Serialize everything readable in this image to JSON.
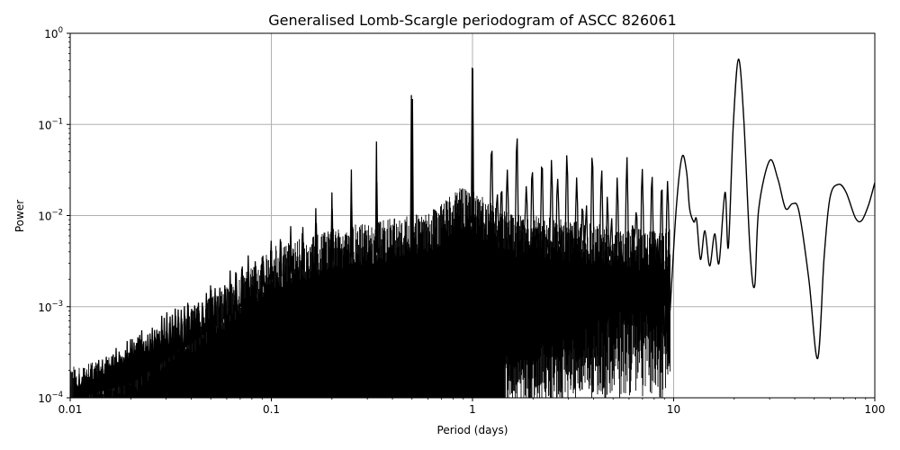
{
  "chart_data": {
    "type": "line",
    "title": "Generalised Lomb-Scargle periodogram of ASCC 826061",
    "xlabel": "Period (days)",
    "ylabel": "Power",
    "xscale": "log",
    "yscale": "log",
    "xlim": [
      0.01,
      100
    ],
    "ylim": [
      0.0001,
      1
    ],
    "grid": true,
    "legend": null,
    "line_color": "#000000",
    "grid_color": "#b0b0b0",
    "x_ticks": [
      {
        "value": 0.01,
        "label": "0.01"
      },
      {
        "value": 0.1,
        "label": "0.1"
      },
      {
        "value": 1,
        "label": "1"
      },
      {
        "value": 10,
        "label": "10"
      },
      {
        "value": 100,
        "label": "100"
      }
    ],
    "y_ticks": [
      {
        "value": 0.0001,
        "base": "10",
        "exp": "−4"
      },
      {
        "value": 0.001,
        "base": "10",
        "exp": "−3"
      },
      {
        "value": 0.01,
        "base": "10",
        "exp": "−2"
      },
      {
        "value": 0.1,
        "base": "10",
        "exp": "−1"
      },
      {
        "value": 1,
        "base": "10",
        "exp": "0"
      }
    ],
    "dominant_peaks": [
      {
        "period": 21.0,
        "power": 0.52
      },
      {
        "period": 0.997,
        "power": 0.42
      },
      {
        "period": 1.003,
        "power": 0.41
      },
      {
        "period": 0.497,
        "power": 0.21
      },
      {
        "period": 0.503,
        "power": 0.19
      },
      {
        "period": 30.0,
        "power": 0.04
      },
      {
        "period": 11.0,
        "power": 0.044
      },
      {
        "period": 0.333,
        "power": 0.065
      },
      {
        "period": 0.25,
        "power": 0.032
      },
      {
        "period": 0.2,
        "power": 0.018
      }
    ],
    "smooth_long_period_curve": [
      [
        9.6,
        0.0009
      ],
      [
        10.3,
        0.012
      ],
      [
        11.0,
        0.044
      ],
      [
        11.6,
        0.03
      ],
      [
        12.0,
        0.012
      ],
      [
        12.6,
        0.0085
      ],
      [
        13.0,
        0.009
      ],
      [
        13.6,
        0.0033
      ],
      [
        14.3,
        0.0068
      ],
      [
        15.1,
        0.0028
      ],
      [
        16.0,
        0.0063
      ],
      [
        16.8,
        0.003
      ],
      [
        18.0,
        0.018
      ],
      [
        18.7,
        0.0045
      ],
      [
        19.8,
        0.1
      ],
      [
        21.0,
        0.52
      ],
      [
        22.3,
        0.12
      ],
      [
        24.0,
        0.004
      ],
      [
        25.3,
        0.0017
      ],
      [
        26.5,
        0.012
      ],
      [
        30.0,
        0.04
      ],
      [
        33.0,
        0.025
      ],
      [
        36.0,
        0.012
      ],
      [
        39.0,
        0.0135
      ],
      [
        42.0,
        0.011
      ],
      [
        47.0,
        0.002
      ],
      [
        52.0,
        0.00027
      ],
      [
        56.0,
        0.0035
      ],
      [
        60.0,
        0.016
      ],
      [
        66.0,
        0.022
      ],
      [
        72.0,
        0.018
      ],
      [
        80.0,
        0.0095
      ],
      [
        86.0,
        0.0088
      ],
      [
        93.0,
        0.013
      ],
      [
        100.0,
        0.023
      ]
    ],
    "noise_envelope": [
      [
        0.01,
        0.00012
      ],
      [
        0.02,
        0.00018
      ],
      [
        0.04,
        0.0005
      ],
      [
        0.07,
        0.0012
      ],
      [
        0.1,
        0.0025
      ],
      [
        0.2,
        0.004
      ],
      [
        0.35,
        0.005
      ],
      [
        0.6,
        0.006
      ],
      [
        0.9,
        0.012
      ],
      [
        1.5,
        0.006
      ],
      [
        3.0,
        0.005
      ],
      [
        6.0,
        0.004
      ],
      [
        9.0,
        0.004
      ]
    ]
  }
}
